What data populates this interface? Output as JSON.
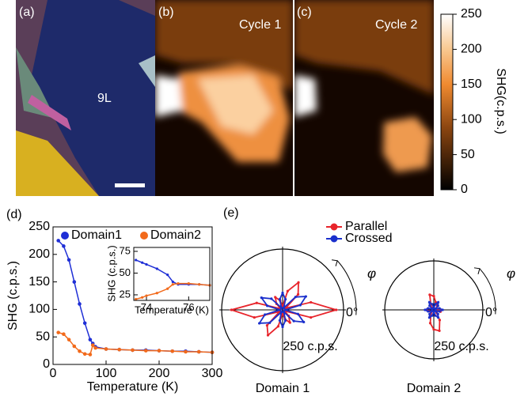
{
  "panel_labels": [
    "(a)",
    "(b)",
    "(c)",
    "(d)",
    "(e)"
  ],
  "images": {
    "a_label": "9L",
    "b_label": "Cycle 1",
    "c_label": "Cycle 2"
  },
  "colorbar": {
    "label": "SHG(c.p.s.)",
    "lim": [
      0,
      250
    ],
    "ticks": [
      0,
      50,
      100,
      150,
      200,
      250
    ]
  },
  "chart_data": [
    {
      "type": "line",
      "xlabel": "Temperature (K)",
      "ylabel": "SHG (c.p.s.)",
      "x": [
        10,
        20,
        30,
        40,
        50,
        60,
        70,
        75,
        80,
        100,
        125,
        150,
        175,
        200,
        225,
        250,
        275,
        300
      ],
      "series": [
        {
          "name": "Domain1",
          "color": "#1f2fd6",
          "values": [
            225,
            215,
            190,
            150,
            110,
            75,
            45,
            38,
            32,
            28,
            27,
            26,
            26,
            25,
            24,
            24,
            23,
            22
          ]
        },
        {
          "name": "Domain2",
          "color": "#f26a1b",
          "values": [
            58,
            55,
            45,
            33,
            24,
            19,
            18,
            35,
            30,
            28,
            27,
            26,
            25,
            25,
            24,
            23,
            23,
            22
          ]
        }
      ],
      "xlim": [
        0,
        300
      ],
      "ylim": [
        0,
        250
      ],
      "xticks": [
        0,
        100,
        200,
        300
      ],
      "yticks": [
        0,
        50,
        100,
        150,
        200,
        250
      ]
    },
    {
      "type": "line",
      "xlabel": "Temperature (K)",
      "ylabel": "SHG (c.p.s.)",
      "x": [
        73.5,
        73.8,
        74,
        74.5,
        75,
        75.25,
        75.5,
        76,
        76.5,
        77
      ],
      "series": [
        {
          "color": "#1f2fd6",
          "values": [
            65,
            62,
            60,
            55,
            48,
            40,
            37,
            37,
            37,
            36
          ]
        },
        {
          "color": "#f26a1b",
          "values": [
            20,
            22,
            24,
            27,
            32,
            37,
            38,
            38,
            37,
            36
          ]
        }
      ],
      "xlim": [
        73.4,
        77
      ],
      "ylim": [
        18.6,
        79.5
      ],
      "xticks": [
        74,
        76
      ],
      "yticks": [
        25,
        50,
        75
      ]
    },
    {
      "type": "polar",
      "title": "Domain 1",
      "angle_label": "φ",
      "zero_label": "0°",
      "theta": [
        0,
        15,
        30,
        45,
        60,
        75,
        90,
        105,
        120,
        135,
        150,
        165,
        180,
        195,
        210,
        225,
        240,
        255,
        270,
        285,
        300,
        315,
        330,
        345
      ],
      "rlim": [
        0,
        250
      ],
      "rticks": [
        {
          "value": 250,
          "label": "250 c.p.s."
        }
      ],
      "series": [
        {
          "name": "Parallel",
          "color": "#e8242b",
          "values": [
            220,
            120,
            15,
            90,
            130,
            80,
            15,
            40,
            60,
            35,
            10,
            110,
            210,
            120,
            15,
            90,
            120,
            70,
            15,
            40,
            60,
            35,
            10,
            120
          ]
        },
        {
          "name": "Crossed",
          "color": "#1a2fcc",
          "values": [
            10,
            75,
            110,
            75,
            10,
            45,
            70,
            45,
            10,
            65,
            100,
            65,
            10,
            75,
            110,
            75,
            10,
            45,
            70,
            45,
            10,
            65,
            100,
            65
          ]
        }
      ]
    },
    {
      "type": "polar",
      "title": "Domain 2",
      "angle_label": "φ",
      "zero_label": "0°",
      "theta": [
        0,
        15,
        30,
        45,
        60,
        75,
        90,
        105,
        120,
        135,
        150,
        165,
        180,
        195,
        210,
        225,
        240,
        255,
        270,
        285,
        300,
        315,
        330,
        345
      ],
      "rlim": [
        0,
        250
      ],
      "rticks": [
        {
          "value": 250,
          "label": "250 c.p.s."
        }
      ],
      "series": [
        {
          "color": "#e8242b",
          "values": [
            40,
            15,
            10,
            25,
            30,
            40,
            70,
            80,
            30,
            15,
            10,
            30,
            40,
            25,
            15,
            20,
            30,
            70,
            100,
            110,
            60,
            20,
            10,
            35
          ]
        },
        {
          "color": "#1a2fcc",
          "values": [
            45,
            30,
            10,
            30,
            45,
            30,
            10,
            30,
            45,
            30,
            10,
            30,
            45,
            30,
            10,
            30,
            45,
            30,
            10,
            30,
            45,
            30,
            10,
            30
          ]
        }
      ]
    }
  ]
}
